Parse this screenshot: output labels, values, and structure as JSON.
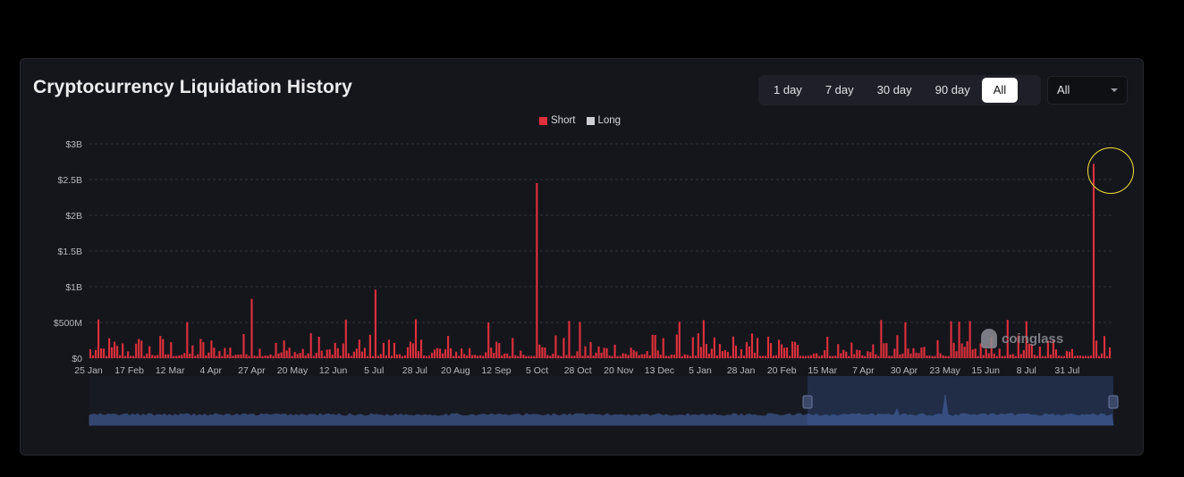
{
  "card": {
    "title": "Cryptocurrency Liquidation History"
  },
  "range_buttons": [
    {
      "label": "1 day",
      "active": false
    },
    {
      "label": "7 day",
      "active": false
    },
    {
      "label": "30 day",
      "active": false
    },
    {
      "label": "90 day",
      "active": false
    },
    {
      "label": "All",
      "active": true
    }
  ],
  "coin_select": {
    "value": "All",
    "icon": "chevron-down-icon"
  },
  "legend": {
    "short_label": "Short",
    "long_label": "Long"
  },
  "watermark": {
    "text": "coinglass",
    "icon": "coinglass-logo-icon"
  },
  "colors": {
    "background": "#000000",
    "card": "#15161c",
    "short": "#e0303b",
    "long": "#cfcfd3",
    "grid": "#30313a",
    "axis_text": "#b7b8bf",
    "navigator_fill": "#2a3d66",
    "navigator_line": "#4a6bb0",
    "highlight": "#f3e23a"
  },
  "chart_data": {
    "type": "bar",
    "series_names": [
      "Short",
      "Long"
    ],
    "y_ticks": [
      "$0",
      "$500M",
      "$1B",
      "$1.5B",
      "$2B",
      "$2.5B",
      "$3B"
    ],
    "ylim": [
      0,
      3000000000
    ],
    "x_tick_labels": [
      "25 Jan",
      "17 Feb",
      "12 Mar",
      "4 Apr",
      "27 Apr",
      "20 May",
      "12 Jun",
      "5 Jul",
      "28 Jul",
      "20 Aug",
      "12 Sep",
      "5 Oct",
      "28 Oct",
      "20 Nov",
      "13 Dec",
      "5 Jan",
      "28 Jan",
      "20 Feb",
      "15 Mar",
      "7 Apr",
      "30 Apr",
      "23 May",
      "15 Jun",
      "8 Jul",
      "31 Jul"
    ],
    "notable_spikes_usd": [
      {
        "near_label": "27 Apr",
        "value": 830000000
      },
      {
        "near_label": "5 Jul",
        "value": 960000000
      },
      {
        "near_label": "5 Oct",
        "value": 2450000000
      },
      {
        "near_label": "end",
        "value": 2720000000
      }
    ],
    "typical_daily_range_usd": [
      30000000,
      400000000
    ],
    "grid": true,
    "legend_position": "top-center",
    "navigator": true
  }
}
